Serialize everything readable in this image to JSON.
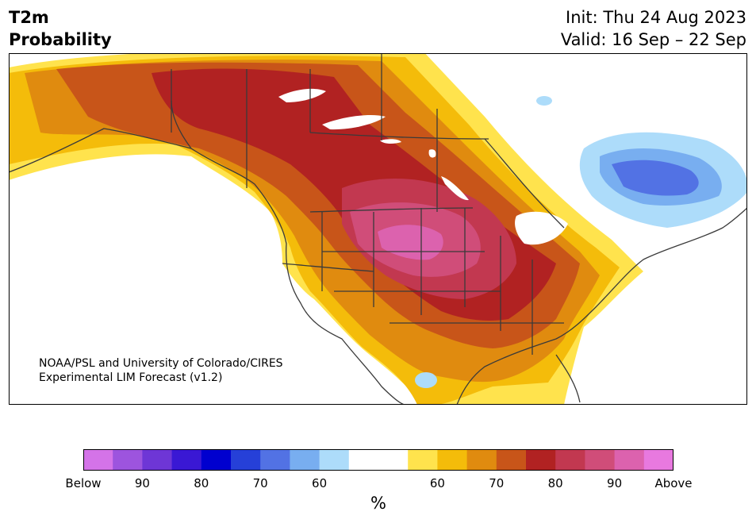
{
  "header": {
    "title_line1": "T2m",
    "title_line2": "Probability",
    "init": "Init: Thu 24 Aug 2023",
    "valid": "Valid: 16 Sep – 22 Sep"
  },
  "map": {
    "region": "North America",
    "projection": "Lambert conformal",
    "credit_line1": "NOAA/PSL and University of Colorado/CIRES",
    "credit_line2": "Experimental LIM Forecast (v1.2)"
  },
  "colorbar": {
    "unit": "%",
    "colors": [
      "#d473e8",
      "#9d54de",
      "#6e36d6",
      "#3a18d4",
      "#0000cf",
      "#2640d8",
      "#5272e4",
      "#78aef0",
      "#addcfa",
      "#ffffff",
      "#ffffff",
      "#ffe34d",
      "#f4bc0a",
      "#e08b0f",
      "#c85519",
      "#b12222",
      "#c23850",
      "#d04d79",
      "#dc62ae",
      "#e879df"
    ],
    "tick_labels": [
      "Below",
      "90",
      "80",
      "70",
      "60",
      "60",
      "70",
      "80",
      "90",
      "Above"
    ]
  }
}
